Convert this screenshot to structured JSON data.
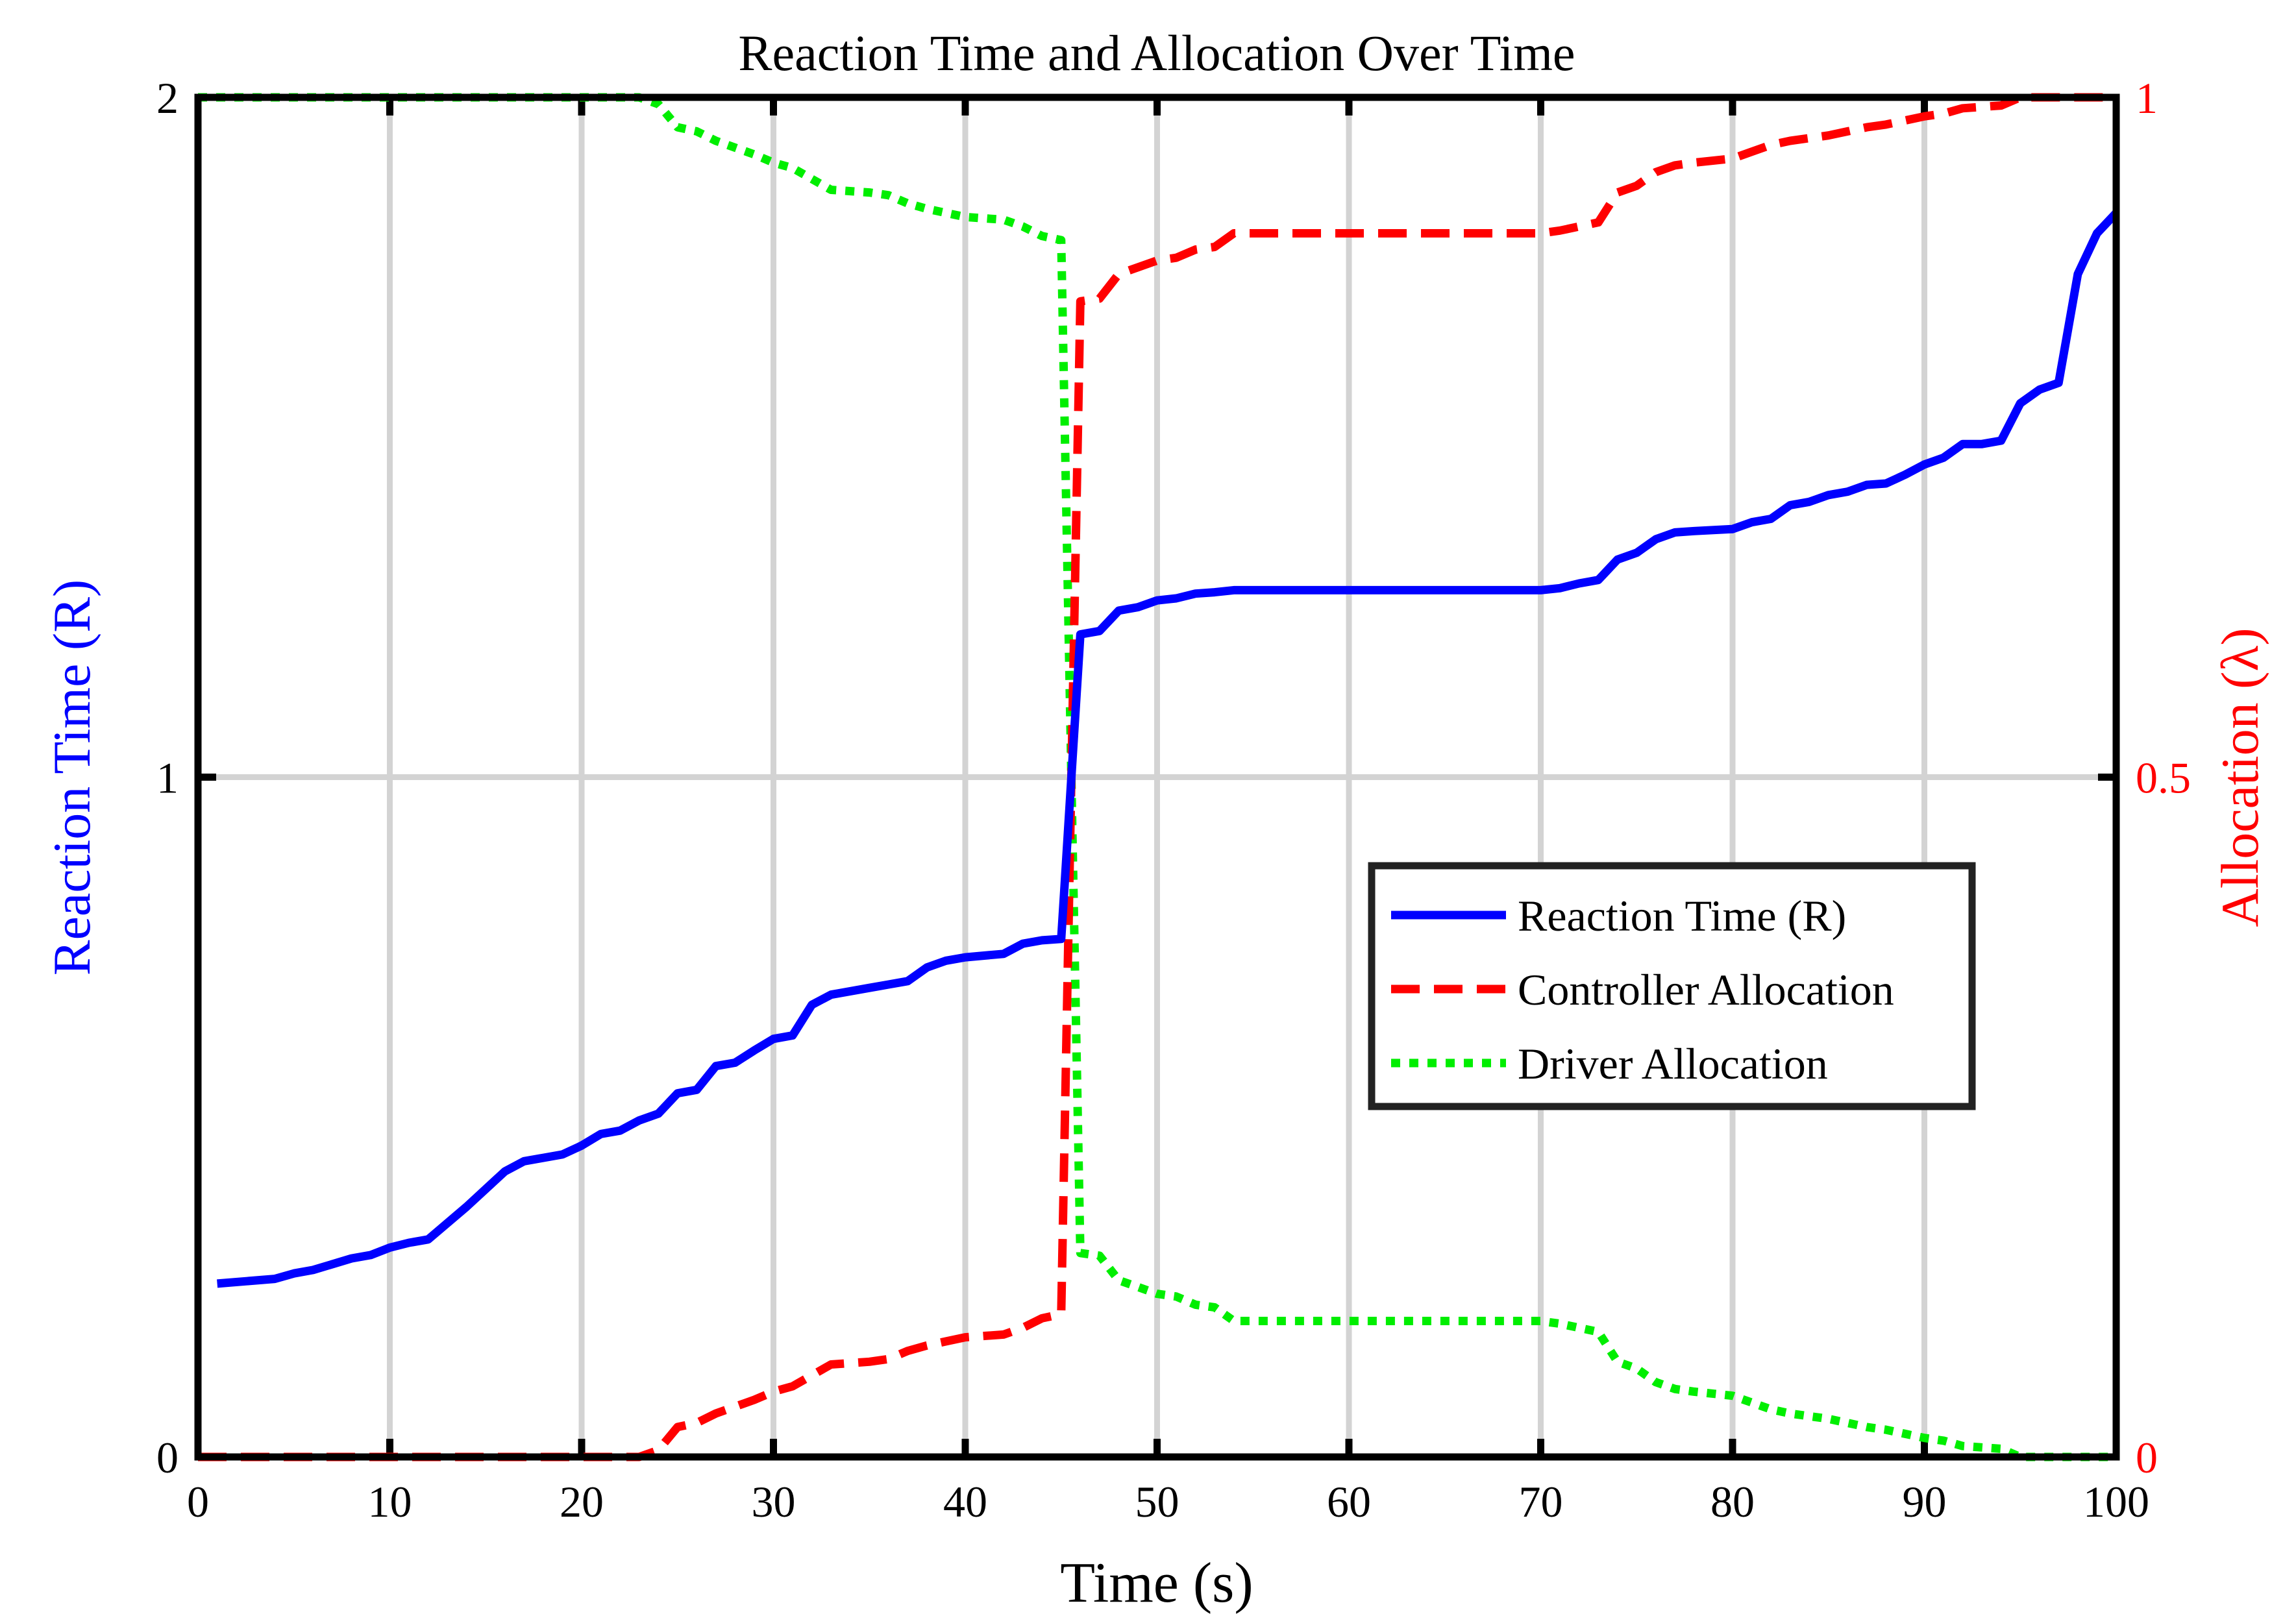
{
  "chart_data": {
    "type": "line",
    "title": "Reaction Time and Allocation Over Time",
    "xlabel": "Time (s)",
    "ylabel_left": "Reaction Time (R)",
    "ylabel_right": "Allocation (λ)",
    "xlim": [
      0,
      100
    ],
    "ylim_left": [
      0,
      2
    ],
    "ylim_right": [
      0,
      1
    ],
    "x_ticks": [
      0,
      10,
      20,
      30,
      40,
      50,
      60,
      70,
      80,
      90,
      100
    ],
    "x_tick_labels": [
      "0",
      "10",
      "20",
      "30",
      "40",
      "50",
      "60",
      "70",
      "80",
      "90",
      "100"
    ],
    "y_ticks_left": [
      0,
      1,
      2
    ],
    "y_tick_labels_left": [
      "0",
      "1",
      "2"
    ],
    "y_ticks_right": [
      0,
      0.5,
      1
    ],
    "y_tick_labels_right": [
      "0",
      "0.5",
      "1"
    ],
    "grid": true,
    "legend_position": "center-right",
    "colors": {
      "left_axis": "#0000ff",
      "right_axis": "#ff0000",
      "grid": "#d3d3d3",
      "frame": "#000000"
    },
    "series": [
      {
        "name": "Reaction Time (R)",
        "axis": "left",
        "style": "solid",
        "color": "#0000ff",
        "x": [
          1,
          4,
          5,
          6,
          8,
          9,
          10,
          11,
          12,
          14,
          16,
          17,
          18,
          19,
          20,
          21,
          22,
          23,
          24,
          25,
          26,
          27,
          28,
          29,
          30,
          31,
          32,
          33,
          35,
          36,
          37,
          38,
          39,
          40,
          42,
          43,
          44,
          45,
          46,
          47,
          48,
          49,
          50,
          51,
          52,
          53,
          54,
          70,
          71,
          72,
          73,
          74,
          75,
          76,
          77,
          78,
          80,
          81,
          82,
          83,
          84,
          85,
          86,
          87,
          88,
          89,
          90,
          91,
          92,
          93,
          94,
          95,
          96,
          97,
          98,
          99,
          100
        ],
        "y": [
          0.255,
          0.262,
          0.27,
          0.275,
          0.292,
          0.297,
          0.308,
          0.315,
          0.32,
          0.368,
          0.42,
          0.435,
          0.44,
          0.445,
          0.458,
          0.475,
          0.48,
          0.495,
          0.505,
          0.535,
          0.54,
          0.575,
          0.58,
          0.598,
          0.615,
          0.62,
          0.665,
          0.68,
          0.69,
          0.695,
          0.7,
          0.72,
          0.73,
          0.735,
          0.74,
          0.755,
          0.76,
          0.762,
          1.21,
          1.215,
          1.245,
          1.25,
          1.26,
          1.263,
          1.27,
          1.272,
          1.275,
          1.275,
          1.278,
          1.285,
          1.29,
          1.32,
          1.33,
          1.35,
          1.36,
          1.362,
          1.365,
          1.375,
          1.38,
          1.4,
          1.405,
          1.415,
          1.42,
          1.43,
          1.432,
          1.445,
          1.46,
          1.47,
          1.49,
          1.49,
          1.495,
          1.55,
          1.57,
          1.58,
          1.74,
          1.8,
          1.83
        ]
      },
      {
        "name": "Controller Allocation",
        "axis": "right",
        "style": "dashed",
        "color": "#ff0000",
        "x": [
          0,
          23,
          24,
          25,
          26,
          27,
          28,
          29,
          30,
          31,
          32,
          33,
          35,
          36,
          37,
          38,
          39,
          40,
          42,
          43,
          44,
          45,
          46,
          47,
          48,
          49,
          50,
          51,
          52,
          53,
          54,
          70,
          71,
          72,
          73,
          74,
          75,
          76,
          77,
          78,
          80,
          81,
          82,
          83,
          84,
          85,
          86,
          87,
          88,
          89,
          90,
          91,
          92,
          93,
          94,
          95,
          96,
          100
        ],
        "y": [
          0,
          0,
          0.005,
          0.022,
          0.025,
          0.032,
          0.037,
          0.042,
          0.048,
          0.052,
          0.06,
          0.068,
          0.07,
          0.072,
          0.078,
          0.082,
          0.085,
          0.088,
          0.09,
          0.095,
          0.102,
          0.105,
          0.85,
          0.852,
          0.87,
          0.875,
          0.88,
          0.882,
          0.888,
          0.89,
          0.9,
          0.9,
          0.902,
          0.905,
          0.908,
          0.93,
          0.935,
          0.945,
          0.95,
          0.952,
          0.955,
          0.96,
          0.965,
          0.968,
          0.97,
          0.972,
          0.975,
          0.978,
          0.98,
          0.983,
          0.986,
          0.988,
          0.992,
          0.993,
          0.994,
          1,
          1,
          1
        ]
      },
      {
        "name": "Driver Allocation",
        "axis": "right",
        "style": "dotted",
        "color": "#00ee00",
        "x": [
          0,
          23,
          24,
          25,
          26,
          27,
          28,
          29,
          30,
          31,
          32,
          33,
          35,
          36,
          37,
          38,
          39,
          40,
          42,
          43,
          44,
          45,
          46,
          47,
          48,
          49,
          50,
          51,
          52,
          53,
          54,
          70,
          71,
          72,
          73,
          74,
          75,
          76,
          77,
          78,
          80,
          81,
          82,
          83,
          84,
          85,
          86,
          87,
          88,
          89,
          90,
          91,
          92,
          93,
          94,
          95,
          96,
          100
        ],
        "y": [
          1,
          1,
          0.995,
          0.978,
          0.975,
          0.968,
          0.963,
          0.958,
          0.952,
          0.948,
          0.94,
          0.932,
          0.93,
          0.928,
          0.922,
          0.918,
          0.915,
          0.912,
          0.91,
          0.905,
          0.898,
          0.895,
          0.15,
          0.148,
          0.13,
          0.125,
          0.12,
          0.118,
          0.112,
          0.11,
          0.1,
          0.1,
          0.098,
          0.095,
          0.092,
          0.07,
          0.065,
          0.055,
          0.05,
          0.048,
          0.045,
          0.04,
          0.035,
          0.032,
          0.03,
          0.028,
          0.025,
          0.022,
          0.02,
          0.017,
          0.014,
          0.012,
          0.008,
          0.007,
          0.006,
          0,
          0,
          0
        ]
      }
    ]
  }
}
